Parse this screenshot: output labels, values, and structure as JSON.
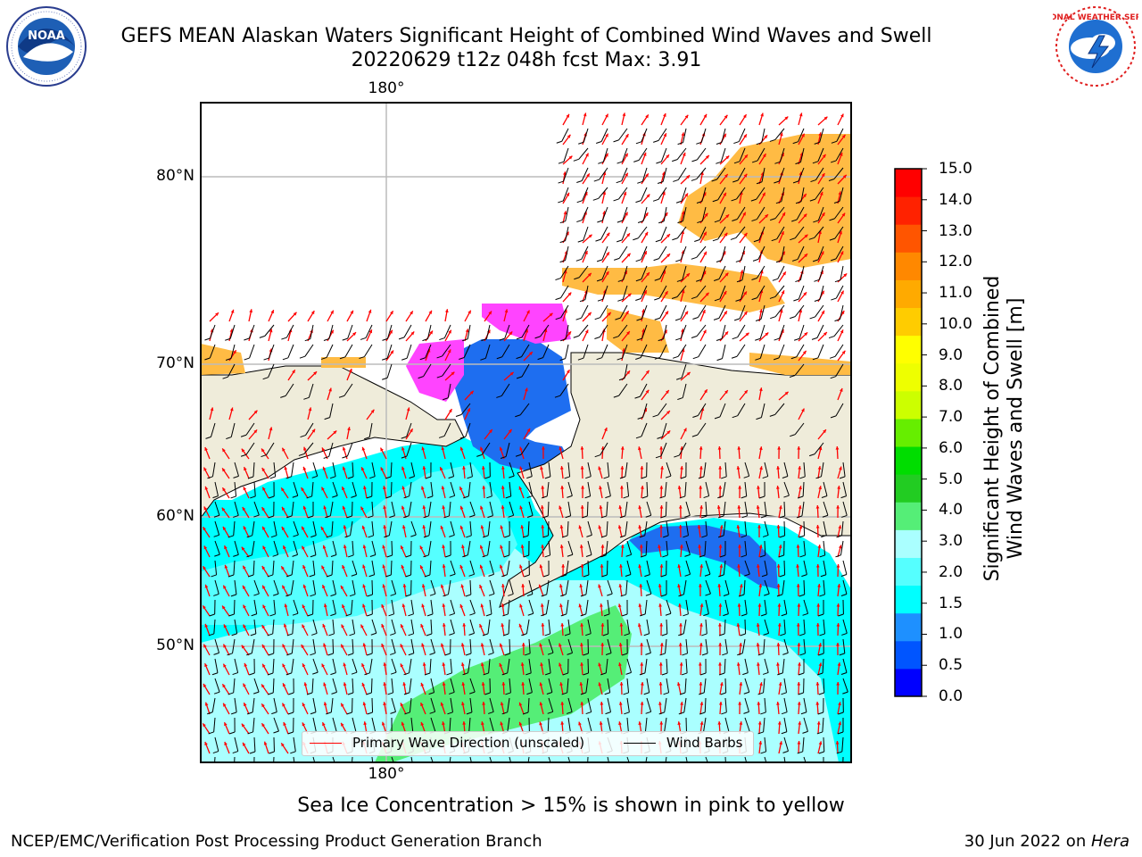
{
  "title": {
    "line1": "GEFS MEAN Alaskan Waters Significant Height of Combined Wind Waves and Swell",
    "line2": "20220629 t12z 048h fcst   Max: 3.91"
  },
  "logos": {
    "noaa": {
      "name": "noaa-logo",
      "text": "NOAA",
      "ring_text": "NATIONAL OCEANIC AND ATMOSPHERIC ADMINISTRATION · U.S. DEPARTMENT OF COMMERCE"
    },
    "nws": {
      "name": "nws-logo",
      "ring_text": "NATIONAL WEATHER SERVICE"
    }
  },
  "map": {
    "lat_labels": [
      "80°N",
      "70°N",
      "60°N",
      "50°N"
    ],
    "lon_label_top": "180°",
    "lon_label_bottom": "180°",
    "colors": {
      "land": "#efecda",
      "ocean_light": "#aaffff",
      "ocean_cyan": "#00ffff",
      "ocean_mid": "#55ffff",
      "swell_green": "#55ee77",
      "deep_blue": "#1e6ef0",
      "ice_orange": "#ffbb44",
      "ice_magenta": "#ff44ff",
      "arrow_red": "#ff0000"
    }
  },
  "legend": {
    "primary_wave_label": "Primary Wave Direction (unscaled)",
    "wind_barbs_label": "Wind Barbs"
  },
  "colorbar": {
    "title_line1": "Significant Height of Combined",
    "title_line2": "Wind Waves and Swell [m]",
    "ticks": [
      "15.0",
      "14.0",
      "13.0",
      "12.0",
      "11.0",
      "10.0",
      "9.0",
      "8.0",
      "7.0",
      "6.0",
      "5.0",
      "4.0",
      "3.0",
      "2.0",
      "1.5",
      "1.0",
      "0.5",
      "0.0"
    ],
    "colors": [
      "#0000ff",
      "#0055ff",
      "#1e90ff",
      "#00ffff",
      "#55ffff",
      "#aaffff",
      "#55ee77",
      "#22cc22",
      "#00dd00",
      "#66ee00",
      "#ccff00",
      "#eeff00",
      "#ffff00",
      "#ffcc00",
      "#ffaa00",
      "#ff8800",
      "#ff5500",
      "#ff2200",
      "#ff0000"
    ]
  },
  "ice_note": "Sea Ice Concentration > 15% is shown in pink to yellow",
  "footer": {
    "left": "NCEP/EMC/Verification Post Processing Product Generation Branch",
    "right_date": "30 Jun 2022 on ",
    "right_host": "Hera"
  }
}
